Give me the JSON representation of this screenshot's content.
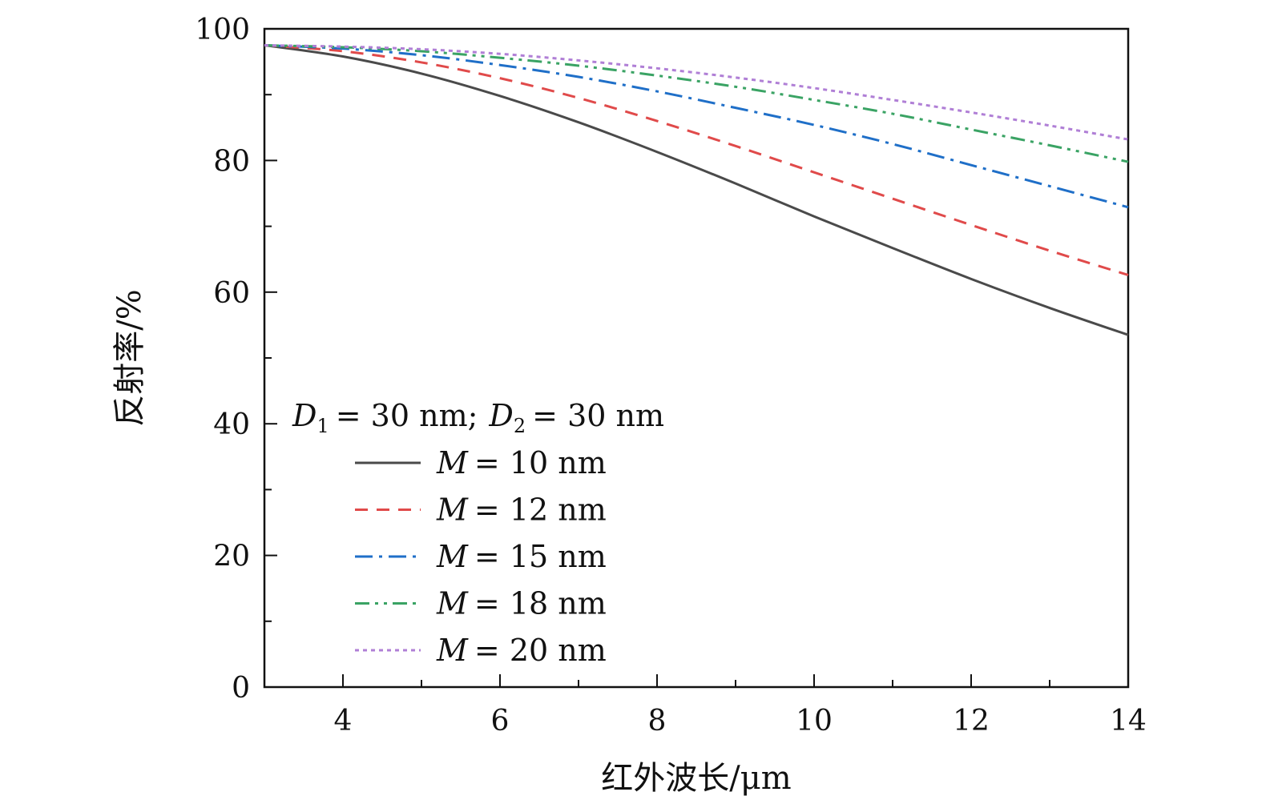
{
  "chart_data": {
    "type": "line",
    "xlabel": "红外波长/μm",
    "ylabel": "反射率/%",
    "xlim": [
      3,
      14
    ],
    "ylim": [
      0,
      100
    ],
    "x_ticks": [
      4,
      6,
      8,
      10,
      12,
      14
    ],
    "x_tick_labels": [
      "4",
      "6",
      "8",
      "10",
      "12",
      "14"
    ],
    "y_ticks": [
      0,
      20,
      40,
      60,
      80,
      100
    ],
    "y_tick_labels": [
      "0",
      "20",
      "40",
      "60",
      "80",
      "100"
    ],
    "grid": false,
    "legend_position": "left-bottom",
    "legend_title": {
      "d1_symbol": "D",
      "d1_sub": "1",
      "d1_value": "= 30 nm;",
      "d2_symbol": "D",
      "d2_sub": "2",
      "d2_value": "= 30 nm"
    },
    "x": [
      3,
      4,
      5,
      6,
      7,
      8,
      9,
      10,
      11,
      12,
      13,
      14
    ],
    "series": [
      {
        "name": "M = 10 nm",
        "symbol": "M",
        "label_rest": "= 10 nm",
        "color": "#4a4a4a",
        "style": "solid",
        "values": [
          97.5,
          95.8,
          93.2,
          89.8,
          85.8,
          81.3,
          76.5,
          71.5,
          66.7,
          62.0,
          57.6,
          53.5
        ]
      },
      {
        "name": "M = 12 nm",
        "symbol": "M",
        "label_rest": "= 12 nm",
        "color": "#e04a4a",
        "style": "dashed",
        "values": [
          97.5,
          96.6,
          94.9,
          92.5,
          89.5,
          86.0,
          82.2,
          78.2,
          74.2,
          70.2,
          66.3,
          62.6
        ]
      },
      {
        "name": "M = 15 nm",
        "symbol": "M",
        "label_rest": "= 15 nm",
        "color": "#1f6fc8",
        "style": "dashdot",
        "values": [
          97.5,
          97.0,
          96.0,
          94.5,
          92.7,
          90.5,
          88.0,
          85.4,
          82.5,
          79.3,
          76.1,
          72.9
        ]
      },
      {
        "name": "M = 18 nm",
        "symbol": "M",
        "label_rest": "= 18 nm",
        "color": "#3aa364",
        "style": "dashdotdot",
        "values": [
          97.5,
          97.2,
          96.6,
          95.6,
          94.4,
          92.9,
          91.2,
          89.2,
          87.1,
          84.7,
          82.3,
          79.8
        ]
      },
      {
        "name": "M = 20 nm",
        "symbol": "M",
        "label_rest": "= 20 nm",
        "color": "#b07fd6",
        "style": "dotted",
        "values": [
          97.5,
          97.3,
          96.9,
          96.2,
          95.2,
          94.0,
          92.6,
          91.0,
          89.2,
          87.3,
          85.3,
          83.2
        ]
      }
    ]
  }
}
